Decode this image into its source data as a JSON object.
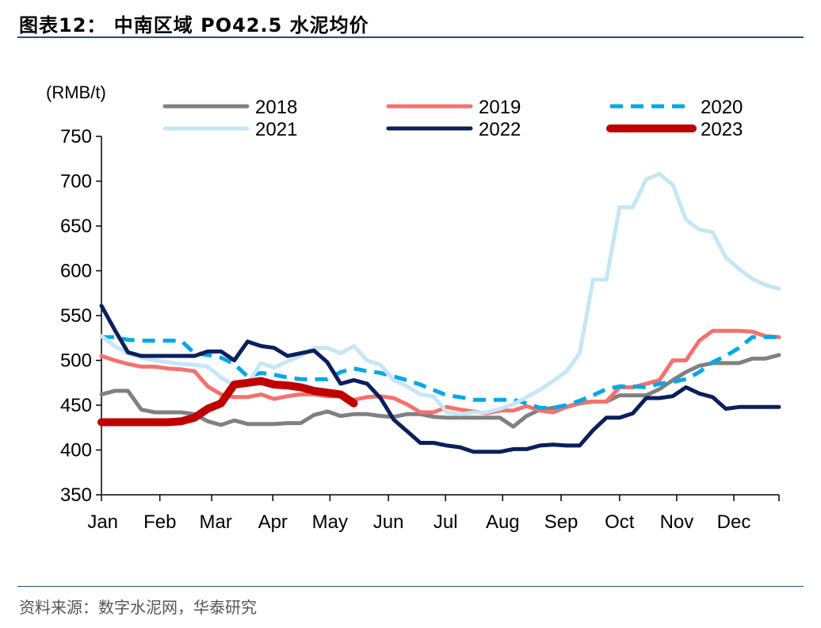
{
  "figure": {
    "title": "图表12： 中南区域 PO42.5 水泥均价",
    "source": "资料来源：数字水泥网，华泰研究"
  },
  "chart_data": {
    "type": "line",
    "ylabel": "(RMB/t)",
    "ylim": [
      350,
      750
    ],
    "yticks": [
      350,
      400,
      450,
      500,
      550,
      600,
      650,
      700,
      750
    ],
    "xlim": [
      0,
      51
    ],
    "month_labels": [
      {
        "label": "Jan",
        "x": 0.1
      },
      {
        "label": "Feb",
        "x": 4.4
      },
      {
        "label": "Mar",
        "x": 8.6
      },
      {
        "label": "Apr",
        "x": 12.9
      },
      {
        "label": "May",
        "x": 17.2
      },
      {
        "label": "Jun",
        "x": 21.6
      },
      {
        "label": "Jul",
        "x": 25.9
      },
      {
        "label": "Aug",
        "x": 30.2
      },
      {
        "label": "Sep",
        "x": 34.6
      },
      {
        "label": "Oct",
        "x": 39.0
      },
      {
        "label": "Nov",
        "x": 43.3
      },
      {
        "label": "Dec",
        "x": 47.6
      }
    ],
    "xtick_positions": [
      0,
      4.4,
      8.3,
      12.9,
      17.2,
      21.6,
      25.9,
      30.2,
      34.6,
      39.0,
      43.3,
      47.6,
      51
    ],
    "grid": false,
    "legend": "top",
    "series": [
      {
        "name": "2018",
        "color": "#808080",
        "style": "solid",
        "width": 5,
        "x": [
          0,
          1,
          2,
          3,
          4,
          5,
          6,
          7,
          8,
          9,
          10,
          11,
          12,
          13,
          14,
          15,
          16,
          17,
          18,
          19,
          20,
          21,
          22,
          23,
          24,
          25,
          26,
          27,
          28,
          29,
          30,
          31,
          32,
          33,
          34,
          35,
          36,
          37,
          38,
          39,
          40,
          41,
          42,
          43,
          44,
          45,
          46,
          47,
          48,
          49,
          50,
          51
        ],
        "values": [
          462,
          466,
          466,
          445,
          442,
          442,
          442,
          440,
          432,
          428,
          433,
          429,
          429,
          429,
          430,
          430,
          439,
          443,
          438,
          440,
          440,
          438,
          437,
          440,
          440,
          437,
          436,
          436,
          436,
          436,
          436,
          426,
          438,
          445,
          447,
          448,
          452,
          454,
          454,
          461,
          461,
          461,
          468,
          478,
          487,
          494,
          497,
          497,
          497,
          502,
          502,
          506
        ]
      },
      {
        "name": "2019",
        "color": "#f4716e",
        "style": "solid",
        "width": 5,
        "x": [
          0,
          1,
          2,
          3,
          4,
          5,
          6,
          7,
          8,
          9,
          10,
          11,
          12,
          13,
          14,
          15,
          16,
          17,
          18,
          19,
          20,
          21,
          22,
          23,
          24,
          25,
          26,
          27,
          28,
          29,
          30,
          31,
          32,
          33,
          34,
          35,
          36,
          37,
          38,
          39,
          40,
          41,
          42,
          43,
          44,
          45,
          46,
          47,
          48,
          49,
          50,
          51
        ],
        "values": [
          505,
          500,
          496,
          493,
          493,
          491,
          490,
          488,
          471,
          462,
          459,
          459,
          462,
          457,
          460,
          462,
          462,
          460,
          460,
          456,
          459,
          460,
          458,
          451,
          442,
          442,
          448,
          445,
          443,
          441,
          444,
          444,
          449,
          444,
          442,
          448,
          453,
          454,
          454,
          470,
          470,
          474,
          478,
          500,
          500,
          522,
          533,
          533,
          533,
          532,
          527,
          526
        ]
      },
      {
        "name": "2020",
        "color": "#00a8e8",
        "style": "dashed",
        "width": 5,
        "x": [
          0,
          1,
          2,
          3,
          4,
          5,
          6,
          7,
          8,
          9,
          10,
          11,
          12,
          13,
          14,
          15,
          16,
          17,
          18,
          19,
          20,
          21,
          22,
          23,
          24,
          25,
          26,
          27,
          28,
          29,
          30,
          31,
          32,
          33,
          34,
          35,
          36,
          37,
          38,
          39,
          40,
          41,
          42,
          43,
          44,
          45,
          46,
          47,
          48,
          49,
          50,
          51
        ],
        "values": [
          526,
          526,
          523,
          522,
          522,
          522,
          522,
          508,
          506,
          503,
          496,
          482,
          486,
          484,
          481,
          479,
          479,
          479,
          487,
          491,
          488,
          486,
          482,
          478,
          473,
          467,
          461,
          459,
          456,
          456,
          456,
          456,
          452,
          447,
          447,
          450,
          455,
          461,
          468,
          471,
          471,
          470,
          474,
          476,
          479,
          487,
          498,
          505,
          514,
          526,
          526,
          526
        ]
      },
      {
        "name": "2021",
        "color": "#c5e6f5",
        "style": "solid",
        "width": 5,
        "x": [
          0,
          1,
          2,
          3,
          4,
          5,
          6,
          7,
          8,
          9,
          10,
          11,
          12,
          13,
          14,
          15,
          16,
          17,
          18,
          19,
          20,
          21,
          22,
          23,
          24,
          25,
          26,
          27,
          28,
          29,
          30,
          31,
          32,
          33,
          34,
          35,
          36,
          37,
          38,
          39,
          40,
          41,
          42,
          43,
          44,
          45,
          46,
          47,
          48,
          49,
          50,
          51
        ],
        "values": [
          527,
          516,
          508,
          503,
          500,
          498,
          496,
          495,
          493,
          481,
          472,
          474,
          497,
          492,
          499,
          505,
          514,
          514,
          508,
          516,
          500,
          495,
          478,
          471,
          462,
          460,
          442,
          440,
          442,
          442,
          446,
          451,
          459,
          467,
          477,
          488,
          508,
          590,
          590,
          671,
          671,
          702,
          708,
          696,
          657,
          646,
          643,
          615,
          602,
          591,
          584,
          580
        ]
      },
      {
        "name": "2022",
        "color": "#0b1f5c",
        "style": "solid",
        "width": 5,
        "x": [
          0,
          1,
          2,
          3,
          4,
          5,
          6,
          7,
          8,
          9,
          10,
          11,
          12,
          13,
          14,
          15,
          16,
          17,
          18,
          19,
          20,
          21,
          22,
          23,
          24,
          25,
          26,
          27,
          28,
          29,
          30,
          31,
          32,
          33,
          34,
          35,
          36,
          37,
          38,
          39,
          40,
          41,
          42,
          43,
          44,
          45,
          46,
          47,
          48,
          49,
          50,
          51
        ],
        "values": [
          561,
          534,
          509,
          505,
          505,
          505,
          505,
          505,
          510,
          510,
          500,
          521,
          516,
          514,
          505,
          508,
          511,
          498,
          474,
          478,
          474,
          458,
          434,
          421,
          408,
          408,
          405,
          403,
          398,
          398,
          398,
          401,
          401,
          405,
          406,
          405,
          405,
          422,
          436,
          436,
          441,
          458,
          458,
          460,
          470,
          463,
          459,
          446,
          448,
          448,
          448,
          448
        ]
      },
      {
        "name": "2023",
        "color": "#c00000",
        "style": "solid",
        "width": 10,
        "x": [
          0,
          1,
          2,
          3,
          4,
          5,
          6,
          7,
          8,
          9,
          10,
          11,
          12,
          13,
          14,
          15,
          16,
          17,
          18,
          19
        ],
        "values": [
          431,
          431,
          431,
          431,
          431,
          431,
          432,
          436,
          446,
          452,
          473,
          475,
          477,
          473,
          472,
          470,
          466,
          464,
          462,
          452
        ]
      }
    ]
  }
}
